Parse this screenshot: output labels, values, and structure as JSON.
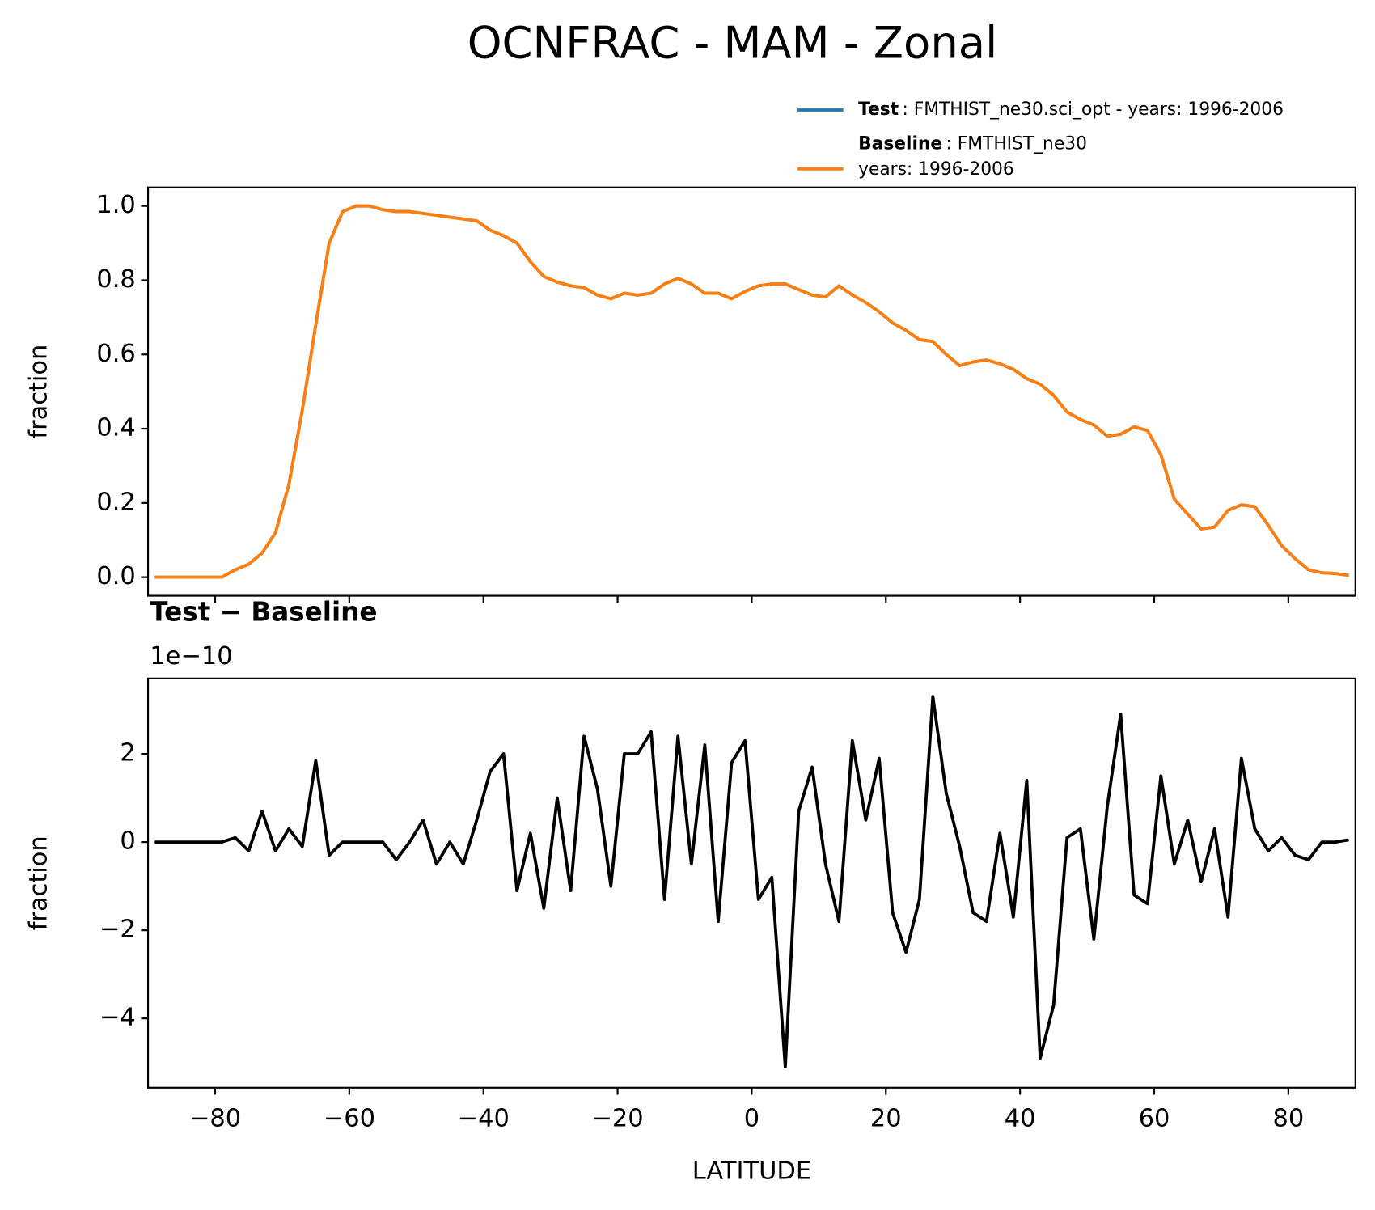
{
  "title": "OCNFRAC - MAM - Zonal",
  "chart_data": [
    {
      "type": "line",
      "ylabel": "fraction",
      "xlim": [
        -90,
        90
      ],
      "xticks": [
        -80,
        -60,
        -40,
        -20,
        0,
        20,
        40,
        60,
        80
      ],
      "ylim": [
        -0.05,
        1.05
      ],
      "yticks": [
        {
          "value": 0,
          "label": "0.0"
        },
        {
          "value": 0.2,
          "label": "0.2"
        },
        {
          "value": 0.4,
          "label": "0.4"
        },
        {
          "value": 0.6,
          "label": "0.6"
        },
        {
          "value": 0.8,
          "label": "0.8"
        },
        {
          "value": 1,
          "label": "1.0"
        }
      ],
      "x": [
        -89,
        -87,
        -85,
        -83,
        -81,
        -79,
        -77,
        -75,
        -73,
        -71,
        -69,
        -67,
        -65,
        -63,
        -61,
        -59,
        -57,
        -55,
        -53,
        -51,
        -49,
        -47,
        -45,
        -43,
        -41,
        -39,
        -37,
        -35,
        -33,
        -31,
        -29,
        -27,
        -25,
        -23,
        -21,
        -19,
        -17,
        -15,
        -13,
        -11,
        -9,
        -7,
        -5,
        -3,
        -1,
        1,
        3,
        5,
        7,
        9,
        11,
        13,
        15,
        17,
        19,
        21,
        23,
        25,
        27,
        29,
        31,
        33,
        35,
        37,
        39,
        41,
        43,
        45,
        47,
        49,
        51,
        53,
        55,
        57,
        59,
        61,
        63,
        65,
        67,
        69,
        71,
        73,
        75,
        77,
        79,
        81,
        83,
        85,
        87,
        89
      ],
      "legend": "upper right",
      "series": [
        {
          "name": "Test",
          "description": [
            ": FMTHIST_ne30.sci_opt - years: 1996-2006"
          ],
          "color": "#1f77b4",
          "values": [
            0,
            0,
            0,
            0,
            0,
            0,
            0.02,
            0.035,
            0.065,
            0.12,
            0.25,
            0.45,
            0.68,
            0.9,
            0.985,
            1.0,
            1.0,
            0.99,
            0.985,
            0.985,
            0.98,
            0.975,
            0.97,
            0.965,
            0.96,
            0.935,
            0.92,
            0.9,
            0.85,
            0.81,
            0.795,
            0.785,
            0.78,
            0.76,
            0.75,
            0.765,
            0.76,
            0.765,
            0.79,
            0.805,
            0.79,
            0.765,
            0.765,
            0.75,
            0.77,
            0.785,
            0.79,
            0.79,
            0.775,
            0.76,
            0.755,
            0.785,
            0.76,
            0.74,
            0.715,
            0.685,
            0.665,
            0.64,
            0.635,
            0.6,
            0.57,
            0.58,
            0.585,
            0.575,
            0.56,
            0.535,
            0.52,
            0.49,
            0.445,
            0.425,
            0.41,
            0.38,
            0.385,
            0.405,
            0.395,
            0.33,
            0.21,
            0.17,
            0.13,
            0.135,
            0.18,
            0.195,
            0.19,
            0.14,
            0.085,
            0.05,
            0.02,
            0.012,
            0.01,
            0.005
          ]
        },
        {
          "name": "Baseline",
          "description": [
            ": FMTHIST_ne30",
            "years: 1996-2006"
          ],
          "color": "#ff7f0e",
          "values": [
            0,
            0,
            0,
            0,
            0,
            0,
            0.02,
            0.035,
            0.065,
            0.12,
            0.25,
            0.45,
            0.68,
            0.9,
            0.985,
            1.0,
            1.0,
            0.99,
            0.985,
            0.985,
            0.98,
            0.975,
            0.97,
            0.965,
            0.96,
            0.935,
            0.92,
            0.9,
            0.85,
            0.81,
            0.795,
            0.785,
            0.78,
            0.76,
            0.75,
            0.765,
            0.76,
            0.765,
            0.79,
            0.805,
            0.79,
            0.765,
            0.765,
            0.75,
            0.77,
            0.785,
            0.79,
            0.79,
            0.775,
            0.76,
            0.755,
            0.785,
            0.76,
            0.74,
            0.715,
            0.685,
            0.665,
            0.64,
            0.635,
            0.6,
            0.57,
            0.58,
            0.585,
            0.575,
            0.56,
            0.535,
            0.52,
            0.49,
            0.445,
            0.425,
            0.41,
            0.38,
            0.385,
            0.405,
            0.395,
            0.33,
            0.21,
            0.17,
            0.13,
            0.135,
            0.18,
            0.195,
            0.19,
            0.14,
            0.085,
            0.05,
            0.02,
            0.012,
            0.01,
            0.005
          ]
        }
      ]
    },
    {
      "type": "line",
      "title": "Test − Baseline",
      "offset_label": "1e−10",
      "ylabel": "fraction",
      "xlabel": "LATITUDE",
      "xlim": [
        -90,
        90
      ],
      "xticks": [
        {
          "value": -80,
          "label": "−80"
        },
        {
          "value": -60,
          "label": "−60"
        },
        {
          "value": -40,
          "label": "−40"
        },
        {
          "value": -20,
          "label": "−20"
        },
        0,
        20,
        40,
        60,
        80
      ],
      "ylim": [
        -5.57,
        3.71
      ],
      "yticks": [
        {
          "value": -4,
          "label": "−4"
        },
        {
          "value": -2,
          "label": "−2"
        },
        0,
        2
      ],
      "x": [
        -89,
        -87,
        -85,
        -83,
        -81,
        -79,
        -77,
        -75,
        -73,
        -71,
        -69,
        -67,
        -65,
        -63,
        -61,
        -59,
        -57,
        -55,
        -53,
        -51,
        -49,
        -47,
        -45,
        -43,
        -41,
        -39,
        -37,
        -35,
        -33,
        -31,
        -29,
        -27,
        -25,
        -23,
        -21,
        -19,
        -17,
        -15,
        -13,
        -11,
        -9,
        -7,
        -5,
        -3,
        -1,
        1,
        3,
        5,
        7,
        9,
        11,
        13,
        15,
        17,
        19,
        21,
        23,
        25,
        27,
        29,
        31,
        33,
        35,
        37,
        39,
        41,
        43,
        45,
        47,
        49,
        51,
        53,
        55,
        57,
        59,
        61,
        63,
        65,
        67,
        69,
        71,
        73,
        75,
        77,
        79,
        81,
        83,
        85,
        87,
        89
      ],
      "series": [
        {
          "color": "#000000",
          "values": [
            0,
            0,
            0,
            0,
            0,
            0,
            0.1,
            -0.2,
            0.7,
            -0.2,
            0.3,
            -0.1,
            1.85,
            -0.3,
            0,
            0,
            0,
            0,
            -0.4,
            0,
            0.5,
            -0.5,
            0,
            -0.5,
            0.5,
            1.6,
            2.0,
            -1.1,
            0.2,
            -1.5,
            1.0,
            -1.1,
            2.4,
            1.2,
            -1.0,
            2.0,
            2.0,
            2.5,
            -1.3,
            2.4,
            -0.5,
            2.2,
            -1.8,
            1.8,
            2.3,
            -1.3,
            -0.8,
            -5.1,
            0.7,
            1.7,
            -0.5,
            -1.8,
            2.3,
            0.5,
            1.9,
            -1.6,
            -2.5,
            -1.3,
            3.3,
            1.1,
            -0.1,
            -1.6,
            -1.8,
            0.2,
            -1.7,
            1.4,
            -4.9,
            -3.7,
            0.1,
            0.3,
            -2.2,
            0.8,
            2.9,
            -1.2,
            -1.4,
            1.5,
            -0.5,
            0.5,
            -0.9,
            0.3,
            -1.7,
            1.9,
            0.3,
            -0.2,
            0.1,
            -0.3,
            -0.4,
            0,
            0,
            0.05
          ]
        }
      ]
    }
  ]
}
